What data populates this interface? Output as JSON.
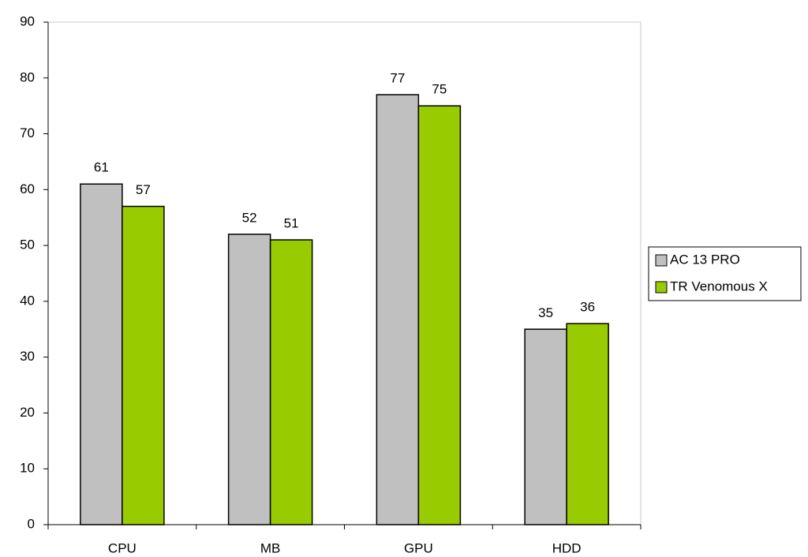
{
  "chart_data": {
    "type": "bar",
    "categories": [
      "CPU",
      "MB",
      "GPU",
      "HDD"
    ],
    "series": [
      {
        "name": "AC 13 PRO",
        "color": "#c0c0c0",
        "values": [
          61,
          52,
          77,
          35
        ]
      },
      {
        "name": "TR Venomous X",
        "color": "#99cc00",
        "values": [
          57,
          51,
          75,
          36
        ]
      }
    ],
    "ylim": [
      0,
      90
    ],
    "yticks": [
      0,
      10,
      20,
      30,
      40,
      50,
      60,
      70,
      80,
      90
    ],
    "grid": false,
    "legend": "right",
    "data_labels": true
  }
}
